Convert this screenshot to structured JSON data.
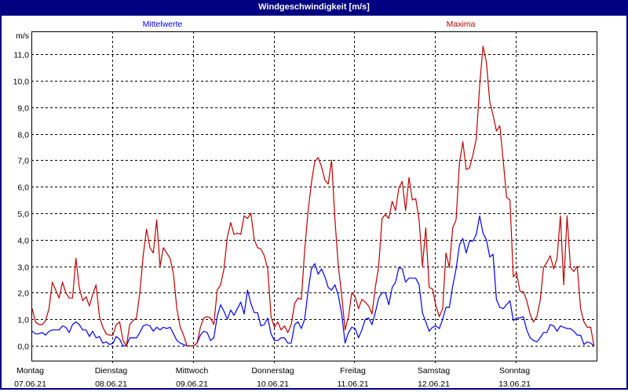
{
  "window": {
    "title": "Windgeschwindigkeit [m/s]"
  },
  "colors": {
    "titlebar": "#000080",
    "mittelwerte": "#0000ff",
    "maxima": "#c00000",
    "grid": "#000000"
  },
  "chart_data": {
    "type": "line",
    "title": "Windgeschwindigkeit [m/s]",
    "ylabel": "m/s",
    "ylim": [
      -0.56,
      11.86
    ],
    "yticks": [
      "0,0",
      "1,0",
      "2,0",
      "3,0",
      "4,0",
      "5,0",
      "6,0",
      "7,0",
      "8,0",
      "9,0",
      "10,0",
      "11,0"
    ],
    "grid": true,
    "sample_interval": "1h",
    "days": [
      {
        "name": "Montag",
        "date": "07.06.21"
      },
      {
        "name": "Dienstag",
        "date": "08.06.21"
      },
      {
        "name": "Mittwoch",
        "date": "09.06.21"
      },
      {
        "name": "Donnerstag",
        "date": "10.06.21"
      },
      {
        "name": "Freitag",
        "date": "11.06.21"
      },
      {
        "name": "Samstag",
        "date": "12.06.21"
      },
      {
        "name": "Sonntag",
        "date": "13.06.21"
      }
    ],
    "series": [
      {
        "name": "Mittelwerte",
        "color": "#0000ff",
        "legend_position": "top-left",
        "values_by_day": [
          [
            0.55,
            0.45,
            0.45,
            0.5,
            0.4,
            0.55,
            0.6,
            0.6,
            0.6,
            0.75,
            0.7,
            0.5,
            0.8,
            0.9,
            0.8,
            0.6,
            0.6,
            0.35,
            0.55,
            0.3,
            0.35,
            0.1,
            0.15,
            0.05
          ],
          [
            0.1,
            0.35,
            0.25,
            0,
            0,
            0.3,
            0.3,
            0.3,
            0.5,
            0.75,
            0.8,
            0.75,
            0.55,
            0.7,
            0.6,
            0.7,
            0.65,
            0.7,
            0.45,
            0.2,
            0.1,
            0.05,
            0,
            0
          ],
          [
            0,
            0.1,
            0.4,
            0.55,
            0.5,
            0.2,
            0.3,
            1.1,
            1.55,
            1.3,
            1.0,
            1.35,
            1.15,
            1.4,
            1.65,
            1.2,
            2.1,
            1.6,
            1.25,
            1.25,
            0.75,
            0.8,
            1.05,
            0.45
          ],
          [
            0.2,
            0.2,
            0.3,
            0.3,
            0.1,
            0.1,
            0.8,
            0.9,
            0.65,
            1.0,
            2.05,
            2.9,
            3.1,
            2.7,
            2.9,
            2.6,
            2.2,
            2.1,
            2.3,
            1.9,
            1.2,
            0.1,
            0.5,
            0.7
          ],
          [
            0.65,
            0.3,
            0.6,
            1.0,
            1.05,
            0.8,
            1.25,
            1.8,
            2.0,
            2.0,
            1.55,
            2.2,
            2.4,
            2.95,
            2.9,
            2.4,
            2.55,
            2.55,
            2.55,
            2.3,
            1.25,
            0.9,
            0.55,
            0.7
          ],
          [
            0.75,
            0.65,
            1.0,
            1.45,
            1.45,
            2.25,
            2.9,
            3.8,
            4.05,
            3.5,
            3.95,
            3.95,
            4.2,
            4.9,
            4.25,
            4.0,
            3.35,
            3.45,
            1.75,
            1.45,
            1.4,
            1.55,
            1.7,
            0.95
          ],
          [
            1.05,
            1.05,
            1.1,
            0.6,
            0.3,
            0.2,
            0.15,
            0.3,
            0.5,
            0.5,
            0.8,
            0.75,
            0.55,
            0.75,
            0.7,
            0.65,
            0.65,
            0.55,
            0.4,
            0.4,
            0.05,
            0.15,
            0.1,
            0
          ]
        ]
      },
      {
        "name": "Maxima",
        "color": "#c00000",
        "legend_position": "top-right",
        "values_by_day": [
          [
            1.4,
            0.9,
            0.8,
            0.8,
            0.95,
            1.4,
            2.4,
            2.1,
            1.8,
            2.4,
            2.0,
            1.8,
            1.8,
            3.3,
            2.2,
            1.7,
            1.85,
            1.5,
            1.95,
            2.3,
            1.1,
            0.7,
            0.45,
            0.4
          ],
          [
            0.4,
            0.8,
            0.9,
            0.2,
            0,
            0.8,
            0.95,
            1.05,
            2.0,
            3.4,
            4.4,
            3.7,
            3.5,
            4.75,
            3.0,
            3.7,
            3.5,
            3.3,
            2.7,
            1.4,
            0.7,
            0.4,
            0,
            0
          ],
          [
            0,
            0.1,
            0.7,
            1.05,
            1.1,
            1.05,
            0.8,
            2.1,
            2.3,
            2.9,
            4.1,
            4.65,
            4.2,
            4.25,
            4.2,
            4.9,
            4.8,
            5.0,
            4.0,
            3.7,
            3.65,
            3.4,
            2.9,
            1.1
          ],
          [
            0.7,
            0.9,
            0.6,
            0.75,
            0.5,
            0.8,
            1.6,
            1.8,
            1.75,
            3.6,
            5.05,
            6.15,
            6.95,
            7.1,
            6.75,
            6.25,
            6.1,
            7.0,
            4.75,
            3.0,
            1.9,
            0.6,
            1.1,
            2.0
          ],
          [
            1.85,
            1.4,
            1.75,
            1.65,
            1.5,
            1.2,
            2.2,
            3.0,
            4.8,
            4.95,
            4.8,
            5.45,
            5.1,
            5.95,
            6.2,
            5.1,
            6.35,
            5.5,
            5.55,
            4.75,
            3.0,
            4.45,
            2.2,
            2.15
          ],
          [
            1.5,
            1.1,
            1.4,
            3.5,
            2.95,
            4.45,
            4.75,
            6.9,
            7.7,
            6.65,
            6.7,
            7.2,
            7.8,
            9.8,
            11.3,
            10.7,
            9.2,
            8.7,
            8.1,
            8.3,
            7.0,
            5.6,
            5.5,
            2.6
          ],
          [
            2.75,
            2.05,
            2.05,
            1.7,
            1.2,
            0.9,
            1.1,
            1.7,
            2.95,
            3.15,
            3.4,
            2.9,
            3.3,
            4.9,
            2.3,
            4.9,
            2.95,
            2.8,
            3.0,
            1.4,
            0.9,
            0.7,
            0.7,
            0
          ]
        ]
      }
    ]
  }
}
